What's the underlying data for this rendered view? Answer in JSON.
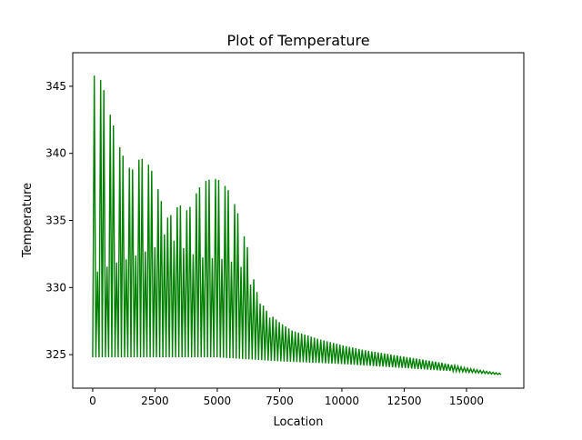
{
  "chart_data": {
    "type": "line",
    "title": "Plot of Temperature",
    "xlabel": "Location",
    "ylabel": "Temperature",
    "xlim": [
      -800,
      17300
    ],
    "ylim": [
      322.5,
      347.5
    ],
    "x_ticks": [
      0,
      2500,
      5000,
      7500,
      10000,
      12500,
      15000
    ],
    "x_tick_labels": [
      "0",
      "2500",
      "5000",
      "7500",
      "10000",
      "12500",
      "15000"
    ],
    "y_ticks": [
      325,
      330,
      335,
      340,
      345
    ],
    "y_tick_labels": [
      "325",
      "330",
      "335",
      "340",
      "345"
    ],
    "grid": false,
    "legend": "none",
    "line_color": "#008000",
    "series": [
      {
        "x_start": 0,
        "x_end": 16400,
        "oscillation_period": 128,
        "baseline_min": [
          [
            0,
            324.8
          ],
          [
            5000,
            324.8
          ],
          [
            7500,
            324.5
          ],
          [
            10000,
            324.3
          ],
          [
            12500,
            324.0
          ],
          [
            15000,
            323.7
          ],
          [
            16400,
            323.5
          ]
        ],
        "peak_envelope": [
          [
            0,
            345.8
          ],
          [
            150,
            345.8
          ],
          [
            300,
            345.6
          ],
          [
            450,
            344.7
          ],
          [
            600,
            343.5
          ],
          [
            800,
            342.3
          ],
          [
            1000,
            340.9
          ],
          [
            1200,
            339.9
          ],
          [
            1400,
            339.0
          ],
          [
            1600,
            338.8
          ],
          [
            1800,
            339.5
          ],
          [
            2000,
            339.6
          ],
          [
            2200,
            339.3
          ],
          [
            2400,
            338.6
          ],
          [
            2600,
            337.5
          ],
          [
            2800,
            336.1
          ],
          [
            3000,
            335.2
          ],
          [
            3200,
            335.5
          ],
          [
            3400,
            336.0
          ],
          [
            3600,
            336.2
          ],
          [
            3800,
            335.7
          ],
          [
            4000,
            336.3
          ],
          [
            4200,
            337.2
          ],
          [
            4400,
            337.8
          ],
          [
            4600,
            338.0
          ],
          [
            4800,
            338.1
          ],
          [
            5000,
            338.1
          ],
          [
            5200,
            337.8
          ],
          [
            5400,
            337.4
          ],
          [
            5600,
            336.7
          ],
          [
            5800,
            335.7
          ],
          [
            6000,
            334.3
          ],
          [
            6200,
            333.1
          ],
          [
            6400,
            331.1
          ],
          [
            6600,
            329.6
          ],
          [
            6800,
            328.8
          ],
          [
            7000,
            328.2
          ],
          [
            7500,
            327.4
          ],
          [
            8000,
            326.8
          ],
          [
            8500,
            326.5
          ],
          [
            9000,
            326.2
          ],
          [
            10000,
            325.7
          ],
          [
            11000,
            325.3
          ],
          [
            12000,
            325.0
          ],
          [
            13000,
            324.7
          ],
          [
            14000,
            324.4
          ],
          [
            15000,
            324.0
          ],
          [
            16000,
            323.7
          ],
          [
            16400,
            323.6
          ]
        ],
        "secondary_envelope": [
          [
            0,
            331.0
          ],
          [
            500,
            331.5
          ],
          [
            1000,
            331.9
          ],
          [
            1500,
            332.2
          ],
          [
            2000,
            332.6
          ],
          [
            2500,
            333.0
          ],
          [
            2800,
            333.8
          ],
          [
            3000,
            334.2
          ],
          [
            3200,
            333.6
          ],
          [
            3600,
            333.0
          ],
          [
            4000,
            332.5
          ],
          [
            4500,
            332.2
          ],
          [
            5000,
            332.2
          ],
          [
            5500,
            332.0
          ],
          [
            6000,
            331.5
          ],
          [
            6500,
            329.6
          ],
          [
            7000,
            327.8
          ],
          [
            16400,
            323.6
          ]
        ]
      }
    ]
  }
}
